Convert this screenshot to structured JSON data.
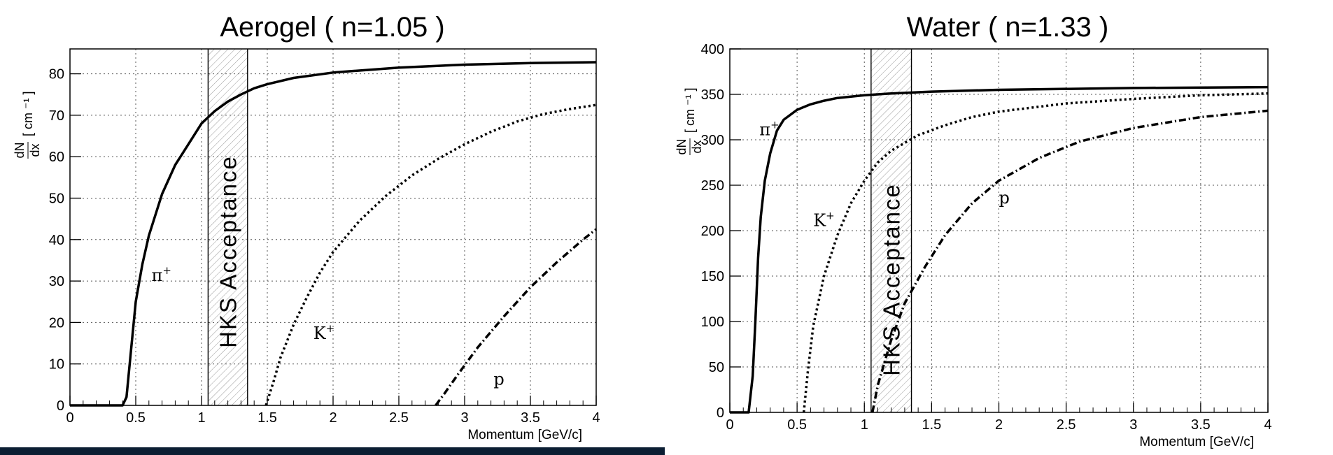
{
  "chart_data": [
    {
      "id": "aerogel",
      "type": "line",
      "title": "Aerogel ( n=1.05 )",
      "xlabel": "Momentum [GeV/c]",
      "ylabel_num": "dN",
      "ylabel_den": "dx",
      "ylabel_unit": "[ cm ⁻¹ ]",
      "xlim": [
        0,
        4
      ],
      "ylim": [
        0,
        86
      ],
      "xticks": [
        0,
        0.5,
        1,
        1.5,
        2,
        2.5,
        3,
        3.5,
        4
      ],
      "xtick_labels": [
        "0",
        "0.5",
        "1",
        "1.5",
        "2",
        "2.5",
        "3",
        "3.5",
        "4"
      ],
      "yticks": [
        0,
        10,
        20,
        30,
        40,
        50,
        60,
        70,
        80
      ],
      "ytick_labels": [
        "0",
        "10",
        "20",
        "30",
        "40",
        "50",
        "60",
        "70",
        "80"
      ],
      "grid": true,
      "band": {
        "x0": 1.05,
        "x1": 1.35,
        "label": "HKS  Acceptance"
      },
      "series": [
        {
          "name": "π⁺",
          "style": "solid",
          "label": "π",
          "sup": "+",
          "label_at": [
            0.62,
            30
          ],
          "points": [
            [
              0,
              0
            ],
            [
              0.4,
              0
            ],
            [
              0.43,
              2
            ],
            [
              0.46,
              12
            ],
            [
              0.5,
              25
            ],
            [
              0.55,
              34
            ],
            [
              0.6,
              41
            ],
            [
              0.7,
              51
            ],
            [
              0.8,
              58
            ],
            [
              0.9,
              63
            ],
            [
              1.0,
              68
            ],
            [
              1.1,
              71
            ],
            [
              1.2,
              73.3
            ],
            [
              1.3,
              75
            ],
            [
              1.4,
              76.5
            ],
            [
              1.5,
              77.5
            ],
            [
              1.7,
              79
            ],
            [
              2.0,
              80.3
            ],
            [
              2.5,
              81.5
            ],
            [
              3.0,
              82.2
            ],
            [
              3.5,
              82.6
            ],
            [
              4.0,
              82.8
            ]
          ]
        },
        {
          "name": "K⁺",
          "style": "dotted",
          "label": "K",
          "sup": "+",
          "label_at": [
            1.85,
            16
          ],
          "points": [
            [
              1.49,
              0
            ],
            [
              1.55,
              6
            ],
            [
              1.6,
              11.5
            ],
            [
              1.7,
              19.5
            ],
            [
              1.8,
              26
            ],
            [
              1.9,
              32
            ],
            [
              2.0,
              37
            ],
            [
              2.2,
              44.5
            ],
            [
              2.4,
              50.5
            ],
            [
              2.6,
              55.5
            ],
            [
              2.8,
              59.5
            ],
            [
              3.0,
              63
            ],
            [
              3.2,
              66
            ],
            [
              3.4,
              68.5
            ],
            [
              3.6,
              70.3
            ],
            [
              3.8,
              71.5
            ],
            [
              4.0,
              72.5
            ]
          ]
        },
        {
          "name": "p",
          "style": "dashdot",
          "label": "p",
          "sup": "",
          "label_at": [
            3.22,
            5
          ],
          "points": [
            [
              2.78,
              0
            ],
            [
              2.85,
              3
            ],
            [
              2.95,
              7.5
            ],
            [
              3.1,
              14
            ],
            [
              3.3,
              21.5
            ],
            [
              3.5,
              28.5
            ],
            [
              3.7,
              34.5
            ],
            [
              3.9,
              40
            ],
            [
              4.0,
              42.5
            ]
          ]
        }
      ]
    },
    {
      "id": "water",
      "type": "line",
      "title": "Water ( n=1.33 )",
      "xlabel": "Momentum [GeV/c]",
      "ylabel_num": "dN",
      "ylabel_den": "dx",
      "ylabel_unit": "[ cm ⁻¹ ]",
      "xlim": [
        0,
        4
      ],
      "ylim": [
        0,
        400
      ],
      "xticks": [
        0,
        0.5,
        1,
        1.5,
        2,
        2.5,
        3,
        3.5,
        4
      ],
      "xtick_labels": [
        "0",
        "0.5",
        "1",
        "1.5",
        "2",
        "2.5",
        "3",
        "3.5",
        "4"
      ],
      "yticks": [
        0,
        50,
        100,
        150,
        200,
        250,
        300,
        350,
        400
      ],
      "ytick_labels": [
        "0",
        "50",
        "100",
        "150",
        "200",
        "250",
        "300",
        "350",
        "400"
      ],
      "grid": true,
      "band": {
        "x0": 1.05,
        "x1": 1.35,
        "label": "HKS  Acceptance"
      },
      "series": [
        {
          "name": "π⁺",
          "style": "solid",
          "label": "π",
          "sup": "+",
          "label_at": [
            0.22,
            305
          ],
          "points": [
            [
              0,
              0
            ],
            [
              0.14,
              0
            ],
            [
              0.17,
              40
            ],
            [
              0.19,
              100
            ],
            [
              0.21,
              170
            ],
            [
              0.23,
              215
            ],
            [
              0.26,
              255
            ],
            [
              0.3,
              285
            ],
            [
              0.35,
              310
            ],
            [
              0.4,
              322
            ],
            [
              0.5,
              333
            ],
            [
              0.6,
              339
            ],
            [
              0.7,
              343
            ],
            [
              0.8,
              346
            ],
            [
              1.0,
              349
            ],
            [
              1.2,
              351
            ],
            [
              1.5,
              353
            ],
            [
              2.0,
              355
            ],
            [
              3.0,
              357
            ],
            [
              4.0,
              358
            ]
          ]
        },
        {
          "name": "K⁺",
          "style": "dotted",
          "label": "K",
          "sup": "+",
          "label_at": [
            0.62,
            205
          ],
          "points": [
            [
              0.55,
              0
            ],
            [
              0.58,
              45
            ],
            [
              0.62,
              95
            ],
            [
              0.7,
              150
            ],
            [
              0.8,
              195
            ],
            [
              0.9,
              230
            ],
            [
              1.0,
              255
            ],
            [
              1.1,
              275
            ],
            [
              1.2,
              288
            ],
            [
              1.4,
              305
            ],
            [
              1.6,
              316
            ],
            [
              1.8,
              325
            ],
            [
              2.0,
              331
            ],
            [
              2.5,
              340
            ],
            [
              3.0,
              345
            ],
            [
              3.5,
              349
            ],
            [
              4.0,
              351
            ]
          ]
        },
        {
          "name": "p",
          "style": "dashdot",
          "label": "p",
          "sup": "",
          "label_at": [
            2.0,
            230
          ],
          "points": [
            [
              1.06,
              0
            ],
            [
              1.1,
              30
            ],
            [
              1.2,
              80
            ],
            [
              1.3,
              120
            ],
            [
              1.45,
              160
            ],
            [
              1.6,
              195
            ],
            [
              1.8,
              230
            ],
            [
              2.0,
              255
            ],
            [
              2.3,
              280
            ],
            [
              2.6,
              298
            ],
            [
              3.0,
              313
            ],
            [
              3.5,
              325
            ],
            [
              4.0,
              332
            ]
          ]
        }
      ]
    }
  ]
}
